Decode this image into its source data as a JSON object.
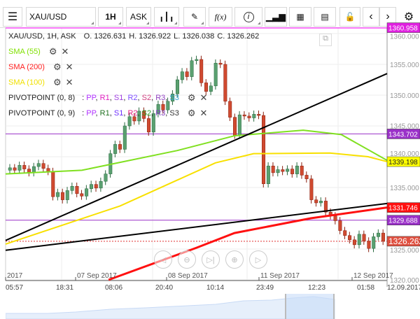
{
  "toolbar": {
    "menu_icon": "hamburger-icon",
    "symbol": "XAU/USD",
    "timeframe": "1H",
    "price_type": "ASK",
    "chart_type_icon": "candlestick-icon",
    "draw_icon": "pencil-icon",
    "indicator_label": "f(x)",
    "info_icon": "info-icon",
    "volume_icon": "bar-chart-icon",
    "calendar_icon": "calendar-icon",
    "news_icon": "news-icon",
    "lock_icon": "unlock-icon",
    "prev_icon": "chevron-left-icon",
    "next_icon": "chevron-right-icon",
    "settings_icon": "gear-icon"
  },
  "ohlc_header": {
    "title": "XAU/USD, 1H, ASK",
    "open": "O. 1326.631",
    "high": "H. 1326.922",
    "low": "L. 1326.038",
    "close": "C. 1326.262"
  },
  "indicators": [
    {
      "label": "SMA (55)",
      "color": "#80e000"
    },
    {
      "label": "SMA (200)",
      "color": "#ff2020"
    },
    {
      "label": "SMA (100)",
      "color": "#f0e000"
    }
  ],
  "pivots": [
    {
      "label": "PIVOTPOINT (0, 8)",
      "levels": [
        {
          "t": "PP",
          "c": "#b030ff"
        },
        {
          "t": "R1",
          "c": "#e020c0"
        },
        {
          "t": "S1",
          "c": "#a040e0"
        },
        {
          "t": "R2",
          "c": "#8050ff"
        },
        {
          "t": "S2",
          "c": "#d04080"
        },
        {
          "t": "R3",
          "c": "#9040c0"
        },
        {
          "t": "S3",
          "c": "#30a0d0"
        }
      ]
    },
    {
      "label": "PIVOTPOINT (0, 9)",
      "levels": [
        {
          "t": "PP",
          "c": "#b030ff"
        },
        {
          "t": "R1",
          "c": "#207020"
        },
        {
          "t": "S1",
          "c": "#7030ff"
        },
        {
          "t": "R2",
          "c": "#e02080"
        },
        {
          "t": "S2",
          "c": "#20a020"
        },
        {
          "t": "R3",
          "c": "#8040c0"
        },
        {
          "t": "S3",
          "c": "#333333"
        }
      ]
    }
  ],
  "price_axis": {
    "ticks": [
      "1360.000",
      "1355.000",
      "1350.000",
      "1345.000",
      "1340.000",
      "1335.000",
      "1325.000",
      "1320.000"
    ],
    "tick_values": [
      1360,
      1355,
      1350,
      1345,
      1340,
      1335,
      1325,
      1320
    ],
    "range": [
      1320,
      1361
    ]
  },
  "price_tags": [
    {
      "text": "1360.958",
      "value": 1360.958,
      "bg": "#e020e0",
      "fg": "#fff"
    },
    {
      "text": "1343.702",
      "value": 1343.702,
      "bg": "#9a30c8",
      "fg": "#fff"
    },
    {
      "text": "1339.198",
      "value": 1339.198,
      "bg": "#ffff00",
      "fg": "#222"
    },
    {
      "text": "1331.746",
      "value": 1331.746,
      "bg": "#ff1010",
      "fg": "#fff"
    },
    {
      "text": "1329.688",
      "value": 1329.688,
      "bg": "#9a30c8",
      "fg": "#fff"
    },
    {
      "text": "1326.262",
      "value": 1326.262,
      "bg": "#e05040",
      "fg": "#fff"
    }
  ],
  "date_labels": [
    "2017",
    "07 Sep 2017",
    "08 Sep 2017",
    "11 Sep 2017",
    "12 Sep 2017"
  ],
  "time_labels": [
    "05:57",
    "18:31",
    "08:06",
    "20:40",
    "10:14",
    "23:49",
    "12:23",
    "01:58",
    "12.09.2017"
  ],
  "closes": [
    1338.2,
    1337.8,
    1338.6,
    1338.0,
    1337.4,
    1338.4,
    1338.9,
    1338.1,
    1337.6,
    1333.5,
    1334.2,
    1333.0,
    1334.5,
    1335.2,
    1334.0,
    1333.6,
    1334.8,
    1335.5,
    1334.9,
    1336.0,
    1337.2,
    1340.5,
    1342.0,
    1341.2,
    1345.0,
    1346.5,
    1345.8,
    1347.4,
    1346.2,
    1344.0,
    1347.0,
    1348.5,
    1347.6,
    1349.0,
    1350.2,
    1352.5,
    1353.8,
    1353.0,
    1355.6,
    1355.8,
    1352.0,
    1350.6,
    1351.5,
    1355.2,
    1355.0,
    1349.0,
    1346.4,
    1343.5,
    1346.8,
    1346.6,
    1346.3,
    1346.9,
    1346.7,
    1335.6,
    1338.5,
    1337.4,
    1337.9,
    1337.6,
    1338.0,
    1337.2,
    1338.5,
    1337.0,
    1336.4,
    1333.0,
    1332.5,
    1332.8,
    1331.0,
    1330.4,
    1329.6,
    1328.0,
    1327.2,
    1326.5,
    1325.7,
    1327.4,
    1326.3,
    1325.1,
    1327.0,
    1327.6,
    1326.262
  ],
  "sma55": [
    [
      0,
      1337.2
    ],
    [
      0.2,
      1337.8
    ],
    [
      0.45,
      1341
    ],
    [
      0.6,
      1343.4
    ],
    [
      0.78,
      1344.3
    ],
    [
      0.88,
      1343.6
    ],
    [
      1,
      1339.4
    ]
  ],
  "sma100": [
    [
      0,
      1325.8
    ],
    [
      0.3,
      1332
    ],
    [
      0.55,
      1339
    ],
    [
      0.65,
      1340.5
    ],
    [
      0.85,
      1340.6
    ],
    [
      0.95,
      1340
    ],
    [
      1,
      1339.198
    ]
  ],
  "sma200": [
    [
      0.27,
      1320
    ],
    [
      0.5,
      1325.2
    ],
    [
      0.6,
      1327.6
    ],
    [
      0.8,
      1330
    ],
    [
      1,
      1331.746
    ]
  ],
  "trendlines": [
    [
      [
        0,
        1326.4
      ],
      [
        1,
        1353.5
      ]
    ],
    [
      [
        0,
        1324.8
      ],
      [
        1,
        1332.4
      ]
    ]
  ],
  "nav_icons": [
    "zoom-back-icon",
    "zoom-out-icon",
    "go-end-icon",
    "zoom-in-icon",
    "zoom-forward-icon"
  ]
}
